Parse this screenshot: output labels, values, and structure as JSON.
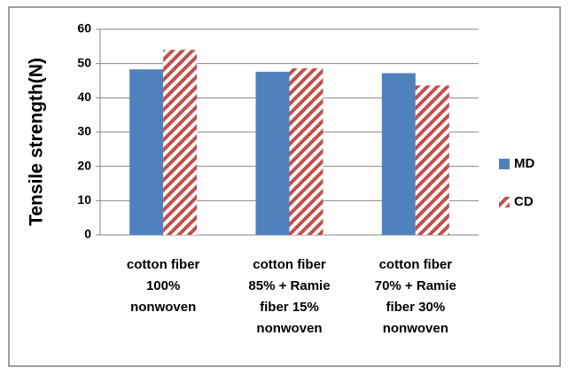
{
  "chart_data": {
    "type": "bar",
    "y_label": "Tensile strength(N)",
    "categories": [
      [
        "cotton fiber",
        "100%",
        "nonwoven"
      ],
      [
        "cotton fiber",
        "85% + Ramie",
        "fiber 15%",
        "nonwoven"
      ],
      [
        "cotton fiber",
        "70% + Ramie",
        "fiber 30%",
        "nonwoven"
      ]
    ],
    "series": [
      {
        "name": "MD",
        "color": "#4f81bd",
        "pattern": "solid",
        "values": [
          48.3,
          47.6,
          47.2
        ]
      },
      {
        "name": "CD",
        "color": "#c0504d",
        "pattern": "hatch",
        "values": [
          54,
          48.6,
          43.6
        ]
      }
    ],
    "ylim": [
      0,
      60
    ],
    "yticks": [
      0,
      10,
      20,
      30,
      40,
      50,
      60
    ],
    "grid": true,
    "legend": "right"
  }
}
